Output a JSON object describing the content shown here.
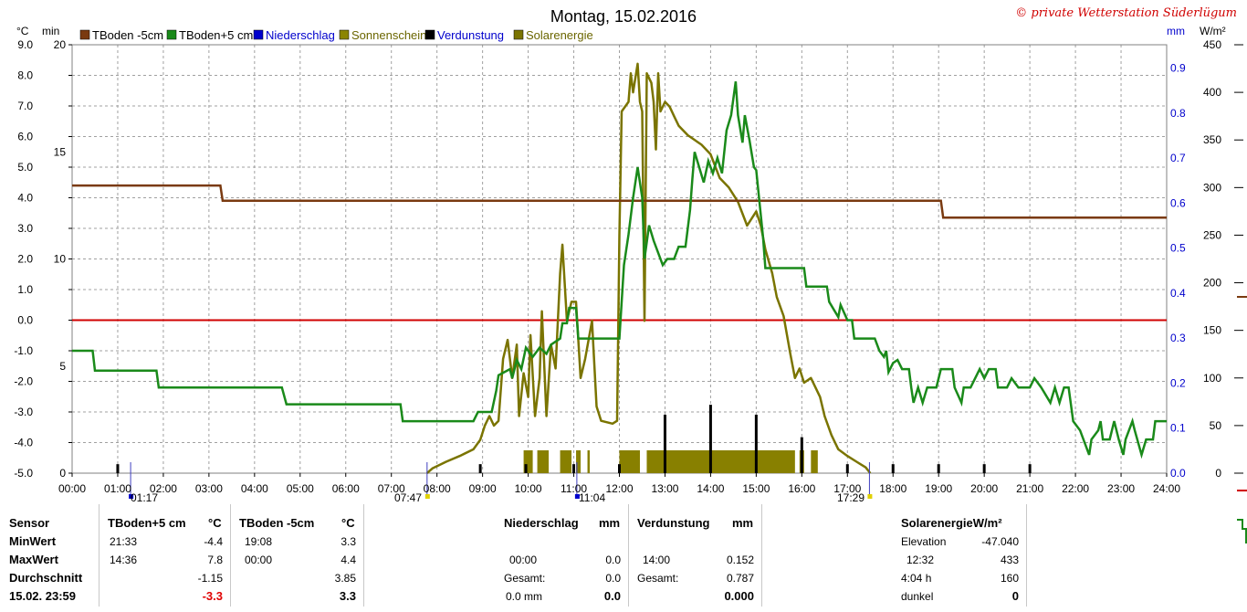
{
  "chart_data": {
    "type": "line",
    "title": "Montag, 15.02.2016",
    "copyright": "© private Wetterstation Süderlügum",
    "legend": [
      {
        "name": "TBoden -5cm",
        "color": "#7a3a10"
      },
      {
        "name": "TBoden+5 cm",
        "color": "#1a8a1a"
      },
      {
        "name": "Niederschlag",
        "color": "#0000cc"
      },
      {
        "name": "Sonnenschein",
        "color": "#8b8500"
      },
      {
        "name": "Verdunstung",
        "color": "#000000"
      },
      {
        "name": "Solarenergie",
        "color": "#7a7400"
      }
    ],
    "axes": {
      "temp_unit": "°C",
      "min_unit": "min",
      "mm_unit": "mm",
      "wm2_unit": "W/m²",
      "temp_ticks": [
        "9.0",
        "8.0",
        "7.0",
        "6.0",
        "5.0",
        "4.0",
        "3.0",
        "2.0",
        "1.0",
        "0.0",
        "-1.0",
        "-2.0",
        "-3.0",
        "-4.0",
        "-5.0"
      ],
      "min_ticks": [
        "20",
        "15",
        "10",
        "5",
        "0"
      ],
      "mm_ticks": [
        "0.9",
        "0.8",
        "0.7",
        "0.6",
        "0.5",
        "0.4",
        "0.3",
        "0.2",
        "0.1",
        "0.0"
      ],
      "wm2_ticks": [
        "450",
        "400",
        "350",
        "300",
        "250",
        "200",
        "150",
        "100",
        "50",
        "0"
      ],
      "x_ticks": [
        "00:00",
        "01:00",
        "02:00",
        "03:00",
        "04:00",
        "05:00",
        "06:00",
        "07:00",
        "08:00",
        "09:00",
        "10:00",
        "11:00",
        "12:00",
        "13:00",
        "14:00",
        "15:00",
        "16:00",
        "17:00",
        "18:00",
        "19:00",
        "20:00",
        "21:00",
        "22:00",
        "23:00",
        "24:00"
      ],
      "temp_range": [
        -5,
        9
      ],
      "x_range_hours": [
        0,
        24
      ]
    },
    "markers": [
      {
        "label": "01:17"
      },
      {
        "label": "07:47"
      },
      {
        "label": "11:04"
      },
      {
        "label": "17:29"
      }
    ],
    "series_tboden_m5": [
      [
        0,
        4.4
      ],
      [
        3.25,
        4.4
      ],
      [
        3.3,
        3.9
      ],
      [
        19.05,
        3.9
      ],
      [
        19.1,
        3.35
      ],
      [
        24,
        3.35
      ]
    ],
    "series_tboden_p5": [
      [
        0,
        -1.0
      ],
      [
        0.45,
        -1.0
      ],
      [
        0.5,
        -1.65
      ],
      [
        1.85,
        -1.65
      ],
      [
        1.9,
        -2.2
      ],
      [
        4.6,
        -2.2
      ],
      [
        4.7,
        -2.75
      ],
      [
        7.2,
        -2.75
      ],
      [
        7.25,
        -3.3
      ],
      [
        8.8,
        -3.3
      ],
      [
        8.9,
        -3.0
      ],
      [
        9.2,
        -3.0
      ],
      [
        9.3,
        -2.3
      ],
      [
        9.35,
        -1.8
      ],
      [
        9.6,
        -1.6
      ],
      [
        9.65,
        -1.9
      ],
      [
        9.75,
        -1.3
      ],
      [
        9.85,
        -1.6
      ],
      [
        9.95,
        -0.9
      ],
      [
        10.1,
        -1.2
      ],
      [
        10.25,
        -0.9
      ],
      [
        10.4,
        -1.1
      ],
      [
        10.5,
        -0.8
      ],
      [
        10.7,
        -0.6
      ],
      [
        10.75,
        -0.1
      ],
      [
        10.85,
        -0.1
      ],
      [
        10.9,
        0.4
      ],
      [
        11.05,
        0.4
      ],
      [
        11.1,
        -0.6
      ],
      [
        12.0,
        -0.6
      ],
      [
        12.1,
        1.8
      ],
      [
        12.2,
        2.8
      ],
      [
        12.3,
        4.0
      ],
      [
        12.4,
        5.0
      ],
      [
        12.5,
        4.0
      ],
      [
        12.55,
        2.0
      ],
      [
        12.65,
        3.1
      ],
      [
        12.75,
        2.6
      ],
      [
        12.85,
        2.2
      ],
      [
        12.95,
        1.8
      ],
      [
        13.05,
        2.0
      ],
      [
        13.2,
        2.0
      ],
      [
        13.3,
        2.4
      ],
      [
        13.45,
        2.4
      ],
      [
        13.55,
        3.6
      ],
      [
        13.6,
        4.6
      ],
      [
        13.65,
        5.5
      ],
      [
        13.75,
        5.0
      ],
      [
        13.85,
        4.5
      ],
      [
        13.95,
        5.2
      ],
      [
        14.05,
        4.8
      ],
      [
        14.15,
        5.3
      ],
      [
        14.25,
        4.8
      ],
      [
        14.35,
        6.2
      ],
      [
        14.45,
        6.7
      ],
      [
        14.55,
        7.8
      ],
      [
        14.6,
        6.7
      ],
      [
        14.7,
        5.8
      ],
      [
        14.75,
        6.7
      ],
      [
        14.85,
        5.9
      ],
      [
        14.95,
        5.0
      ],
      [
        15.0,
        4.9
      ],
      [
        15.15,
        2.7
      ],
      [
        15.2,
        1.7
      ],
      [
        16.05,
        1.7
      ],
      [
        16.1,
        1.1
      ],
      [
        16.55,
        1.1
      ],
      [
        16.6,
        0.6
      ],
      [
        16.8,
        0.1
      ],
      [
        16.85,
        0.5
      ],
      [
        17.0,
        0.0
      ],
      [
        17.1,
        0.0
      ],
      [
        17.15,
        -0.6
      ],
      [
        17.6,
        -0.6
      ],
      [
        17.7,
        -1.0
      ],
      [
        17.8,
        -1.2
      ],
      [
        17.85,
        -1.0
      ],
      [
        17.9,
        -1.7
      ],
      [
        18.0,
        -1.4
      ],
      [
        18.1,
        -1.3
      ],
      [
        18.2,
        -1.6
      ],
      [
        18.35,
        -1.6
      ],
      [
        18.4,
        -2.2
      ],
      [
        18.45,
        -2.7
      ],
      [
        18.55,
        -2.2
      ],
      [
        18.65,
        -2.7
      ],
      [
        18.75,
        -2.2
      ],
      [
        18.95,
        -2.2
      ],
      [
        19.05,
        -1.6
      ],
      [
        19.3,
        -1.6
      ],
      [
        19.35,
        -2.2
      ],
      [
        19.5,
        -2.7
      ],
      [
        19.55,
        -2.2
      ],
      [
        19.7,
        -2.2
      ],
      [
        19.9,
        -1.6
      ],
      [
        20.0,
        -1.9
      ],
      [
        20.1,
        -1.6
      ],
      [
        20.25,
        -1.6
      ],
      [
        20.3,
        -2.2
      ],
      [
        20.5,
        -2.2
      ],
      [
        20.6,
        -1.9
      ],
      [
        20.75,
        -2.2
      ],
      [
        21.0,
        -2.2
      ],
      [
        21.1,
        -1.9
      ],
      [
        21.25,
        -2.2
      ],
      [
        21.45,
        -2.7
      ],
      [
        21.55,
        -2.2
      ],
      [
        21.65,
        -2.7
      ],
      [
        21.75,
        -2.2
      ],
      [
        21.85,
        -2.2
      ],
      [
        21.95,
        -3.3
      ],
      [
        22.1,
        -3.6
      ],
      [
        22.3,
        -4.4
      ],
      [
        22.35,
        -3.9
      ],
      [
        22.5,
        -3.6
      ],
      [
        22.55,
        -3.3
      ],
      [
        22.6,
        -3.9
      ],
      [
        22.75,
        -3.9
      ],
      [
        22.85,
        -3.3
      ],
      [
        22.95,
        -3.9
      ],
      [
        23.05,
        -4.4
      ],
      [
        23.1,
        -3.9
      ],
      [
        23.25,
        -3.3
      ],
      [
        23.3,
        -3.6
      ],
      [
        23.45,
        -4.4
      ],
      [
        23.55,
        -3.9
      ],
      [
        23.7,
        -3.9
      ],
      [
        23.75,
        -3.3
      ],
      [
        24,
        -3.3
      ]
    ],
    "series_solar_wm2": [
      [
        7.78,
        0
      ],
      [
        7.9,
        5
      ],
      [
        8.2,
        12
      ],
      [
        8.5,
        18
      ],
      [
        8.8,
        25
      ],
      [
        8.95,
        35
      ],
      [
        9.05,
        50
      ],
      [
        9.15,
        60
      ],
      [
        9.25,
        50
      ],
      [
        9.35,
        55
      ],
      [
        9.45,
        120
      ],
      [
        9.55,
        140
      ],
      [
        9.65,
        100
      ],
      [
        9.75,
        135
      ],
      [
        9.8,
        60
      ],
      [
        9.9,
        105
      ],
      [
        10.0,
        80
      ],
      [
        10.05,
        145
      ],
      [
        10.15,
        60
      ],
      [
        10.25,
        100
      ],
      [
        10.3,
        170
      ],
      [
        10.4,
        60
      ],
      [
        10.5,
        135
      ],
      [
        10.6,
        110
      ],
      [
        10.7,
        210
      ],
      [
        10.75,
        240
      ],
      [
        10.85,
        160
      ],
      [
        10.95,
        180
      ],
      [
        11.05,
        180
      ],
      [
        11.15,
        100
      ],
      [
        11.25,
        120
      ],
      [
        11.4,
        160
      ],
      [
        11.5,
        70
      ],
      [
        11.6,
        55
      ],
      [
        11.85,
        52
      ],
      [
        11.95,
        55
      ],
      [
        12.0,
        250
      ],
      [
        12.05,
        380
      ],
      [
        12.2,
        390
      ],
      [
        12.25,
        420
      ],
      [
        12.3,
        400
      ],
      [
        12.4,
        430
      ],
      [
        12.45,
        390
      ],
      [
        12.5,
        380
      ],
      [
        12.55,
        160
      ],
      [
        12.6,
        420
      ],
      [
        12.7,
        410
      ],
      [
        12.75,
        390
      ],
      [
        12.8,
        340
      ],
      [
        12.85,
        420
      ],
      [
        12.9,
        380
      ],
      [
        13.0,
        390
      ],
      [
        13.1,
        385
      ],
      [
        13.2,
        375
      ],
      [
        13.3,
        365
      ],
      [
        13.5,
        355
      ],
      [
        13.8,
        345
      ],
      [
        14.0,
        335
      ],
      [
        14.2,
        310
      ],
      [
        14.4,
        300
      ],
      [
        14.6,
        285
      ],
      [
        14.8,
        260
      ],
      [
        15.0,
        275
      ],
      [
        15.1,
        260
      ],
      [
        15.2,
        235
      ],
      [
        15.35,
        210
      ],
      [
        15.45,
        185
      ],
      [
        15.6,
        165
      ],
      [
        15.75,
        125
      ],
      [
        15.85,
        100
      ],
      [
        15.95,
        110
      ],
      [
        16.05,
        95
      ],
      [
        16.2,
        100
      ],
      [
        16.4,
        80
      ],
      [
        16.5,
        60
      ],
      [
        16.65,
        40
      ],
      [
        16.8,
        25
      ],
      [
        17.0,
        18
      ],
      [
        17.2,
        12
      ],
      [
        17.4,
        6
      ],
      [
        17.5,
        0
      ]
    ],
    "sunshine_bars": [
      [
        9.9,
        10.1
      ],
      [
        10.2,
        10.45
      ],
      [
        10.7,
        10.95
      ],
      [
        11.05,
        11.15
      ],
      [
        11.3,
        11.35
      ],
      [
        12.0,
        12.45
      ],
      [
        12.6,
        15.85
      ],
      [
        15.95,
        16.05
      ],
      [
        16.2,
        16.35
      ]
    ],
    "verdunstung_spikes": [
      [
        1.0,
        0.02
      ],
      [
        8.95,
        0.02
      ],
      [
        9.95,
        0.02
      ],
      [
        11.0,
        0.02
      ],
      [
        12.0,
        0.02
      ],
      [
        13.0,
        0.13
      ],
      [
        14.0,
        0.152
      ],
      [
        15.0,
        0.13
      ],
      [
        16.0,
        0.08
      ],
      [
        17.0,
        0.02
      ],
      [
        18.0,
        0.02
      ],
      [
        19.0,
        0.02
      ],
      [
        20.0,
        0.02
      ],
      [
        21.0,
        0.02
      ]
    ],
    "zero_line_temp": 0.0
  },
  "table": {
    "sensor": "Sensor",
    "minwert": "MinWert",
    "maxwert": "MaxWert",
    "durchschnitt": "Durchschnitt",
    "date_time": "15.02. 23:59",
    "tp5": {
      "head": "TBoden+5 cm",
      "unit": "°C",
      "min_t": "21:33",
      "min_v": "-4.4",
      "max_t": "14:36",
      "max_v": "7.8",
      "avg": "-1.15",
      "cur": "-3.3"
    },
    "tm5": {
      "head": "TBoden -5cm",
      "unit": "°C",
      "min_t": "19:08",
      "min_v": "3.3",
      "max_t": "00:00",
      "max_v": "4.4",
      "avg": "3.85",
      "cur": "3.3"
    },
    "nied": {
      "head": "Niederschlag",
      "unit": "mm",
      "max_t": "00:00",
      "max_v": "0.0",
      "ges_l": "Gesamt:",
      "ges_v": "0.0",
      "cur_l": "0.0 mm",
      "cur_v": "0.0"
    },
    "verd": {
      "head": "Verdunstung",
      "unit": "mm",
      "max_t": "14:00",
      "max_v": "0.152",
      "ges_l": "Gesamt:",
      "ges_v": "0.787",
      "cur_v": "0.000"
    },
    "solar": {
      "head": "SolarenergieW/m²",
      "elev_l": "Elevation",
      "elev_v": "-47.040",
      "max_t": "12:32",
      "max_v": "433",
      "dur_l": "4:04 h",
      "dur_v": "160",
      "dark_l": "dunkel",
      "dark_v": "0"
    }
  }
}
